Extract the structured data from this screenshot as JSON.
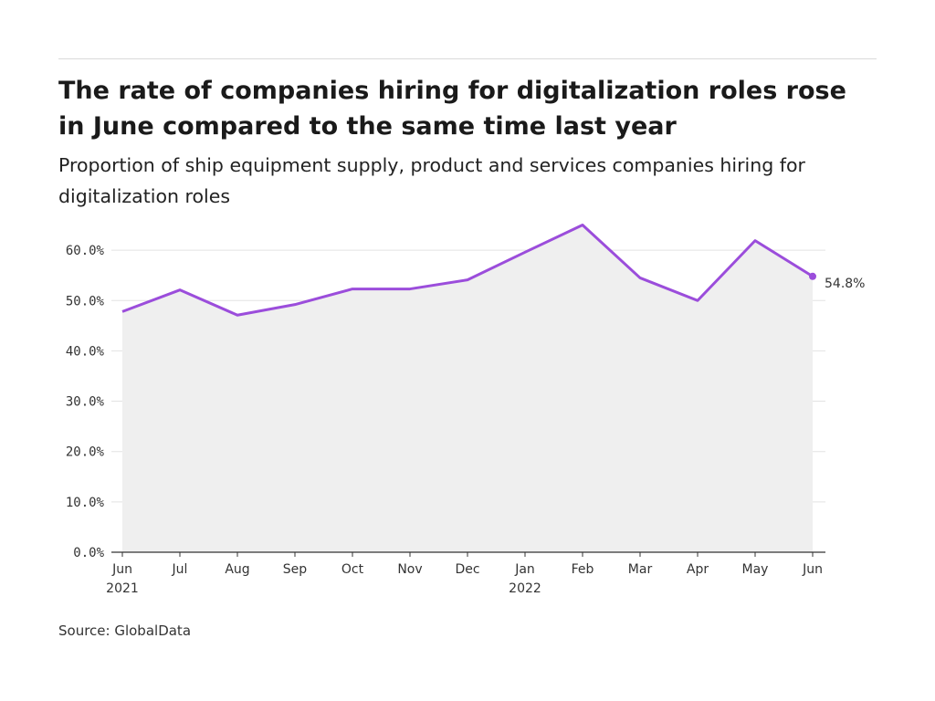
{
  "header": {
    "title": "The rate of companies hiring for digitalization roles rose in June compared to the same time last year",
    "subtitle": "Proportion of ship equipment supply, product and services companies hiring for digitalization roles"
  },
  "footer": {
    "source": "Source: GlobalData"
  },
  "chart_data": {
    "type": "area",
    "title": "The rate of companies hiring for digitalization roles rose in June compared to the same time last year",
    "subtitle": "Proportion of ship equipment supply, product and services companies hiring for digitalization roles",
    "xlabel": "",
    "ylabel": "",
    "categories": [
      "Jun",
      "Jul",
      "Aug",
      "Sep",
      "Oct",
      "Nov",
      "Dec",
      "Jan",
      "Feb",
      "Mar",
      "Apr",
      "May",
      "Jun"
    ],
    "year_labels": [
      "2021",
      "",
      "",
      "",
      "",
      "",
      "",
      "2022",
      "",
      "",
      "",
      "",
      ""
    ],
    "series": [
      {
        "values": [
          47.8,
          52.1,
          47.1,
          49.2,
          52.3,
          52.3,
          54.1,
          59.6,
          65.0,
          54.5,
          50.0,
          61.9,
          54.8
        ]
      }
    ],
    "end_label": "54.8%",
    "yticks": [
      "0.0%",
      "10.0%",
      "20.0%",
      "30.0%",
      "40.0%",
      "50.0%",
      "60.0%"
    ],
    "ytick_values": [
      0,
      10,
      20,
      30,
      40,
      50,
      60
    ],
    "ylim": [
      0,
      60
    ],
    "grid": true,
    "colors": {
      "line": "#9b4ddb",
      "area": "#efefef",
      "grid": "#e3e3e3",
      "axis": "#333333"
    }
  }
}
